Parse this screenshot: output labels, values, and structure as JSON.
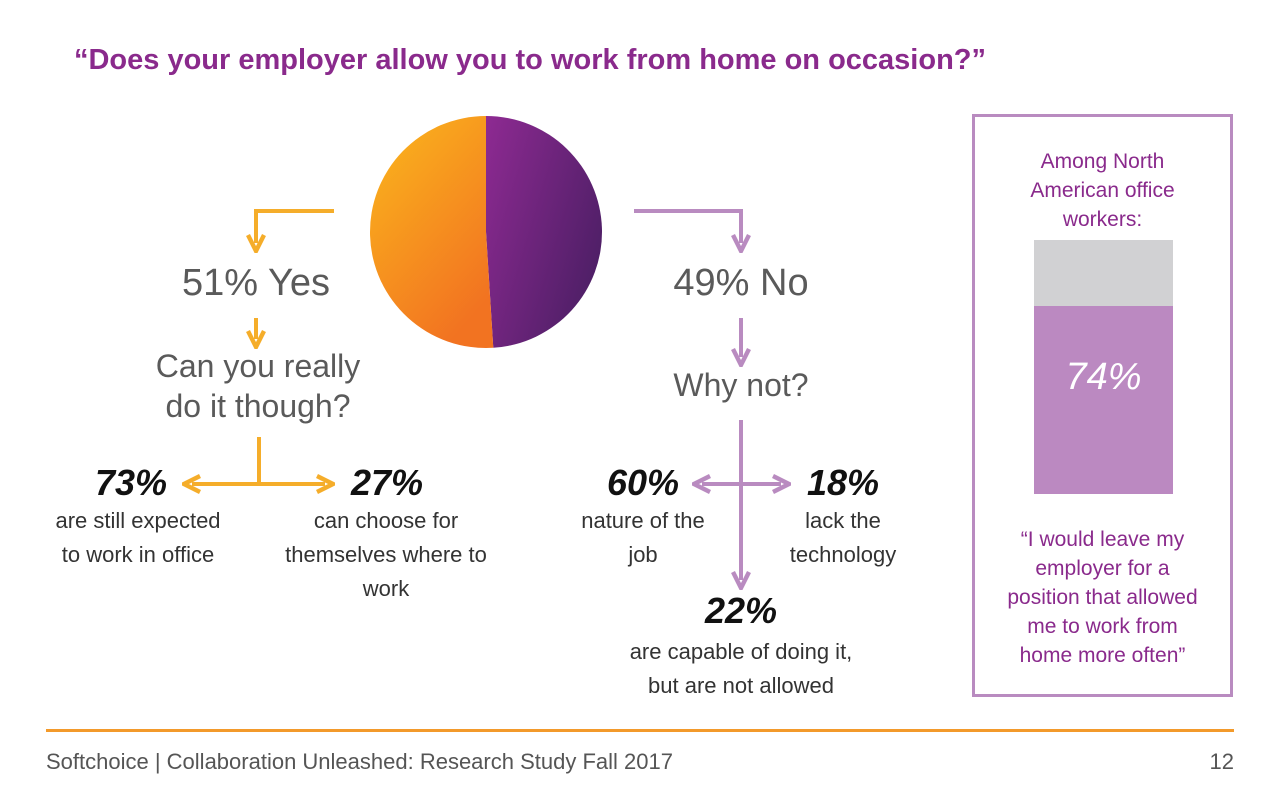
{
  "colors": {
    "yes_start": "#fbb81c",
    "yes_end": "#f27321",
    "no_start": "#8e2a92",
    "no_end": "#4f1f67",
    "purple_title": "#8a2a8c",
    "orange_arrow": "#f5ad2a",
    "purple_arrow": "#b98bc0",
    "bar_fill": "#bb89c1",
    "bar_bg": "#d1d1d3",
    "footer_rule": "#f39a2b"
  },
  "title": "“Does your employer allow you to work from home on occasion?”",
  "yes": {
    "headline": "51% Yes",
    "question": "Can you really do it though?",
    "left_pct": "73%",
    "left_desc": "are still expected to work in office",
    "right_pct": "27%",
    "right_desc": "can choose for themselves where to work"
  },
  "no": {
    "headline": "49% No",
    "question": "Why not?",
    "left_pct": "60%",
    "left_desc": "nature of the job",
    "right_pct": "18%",
    "right_desc": "lack the technology",
    "bottom_pct": "22%",
    "bottom_desc": "are capable of doing it, but are not allowed"
  },
  "sidebar": {
    "heading": "Among North American office workers:",
    "bar_label": "74%",
    "quote": "“I would leave my employer for a position that allowed me to work from home more often”"
  },
  "footer": {
    "text": "Softchoice | Collaboration Unleashed: Research Study Fall 2017",
    "page": "12"
  },
  "chart_data": [
    {
      "type": "pie",
      "title": "“Does your employer allow you to work from home on occasion?”",
      "categories": [
        "Yes",
        "No"
      ],
      "values": [
        51,
        49
      ],
      "unit": "%"
    },
    {
      "type": "bar",
      "title": "Among North American office workers:",
      "categories": [
        "I would leave my employer for a position that allowed me to work from home more often"
      ],
      "values": [
        74
      ],
      "ylim": [
        0,
        100
      ],
      "unit": "%"
    }
  ]
}
